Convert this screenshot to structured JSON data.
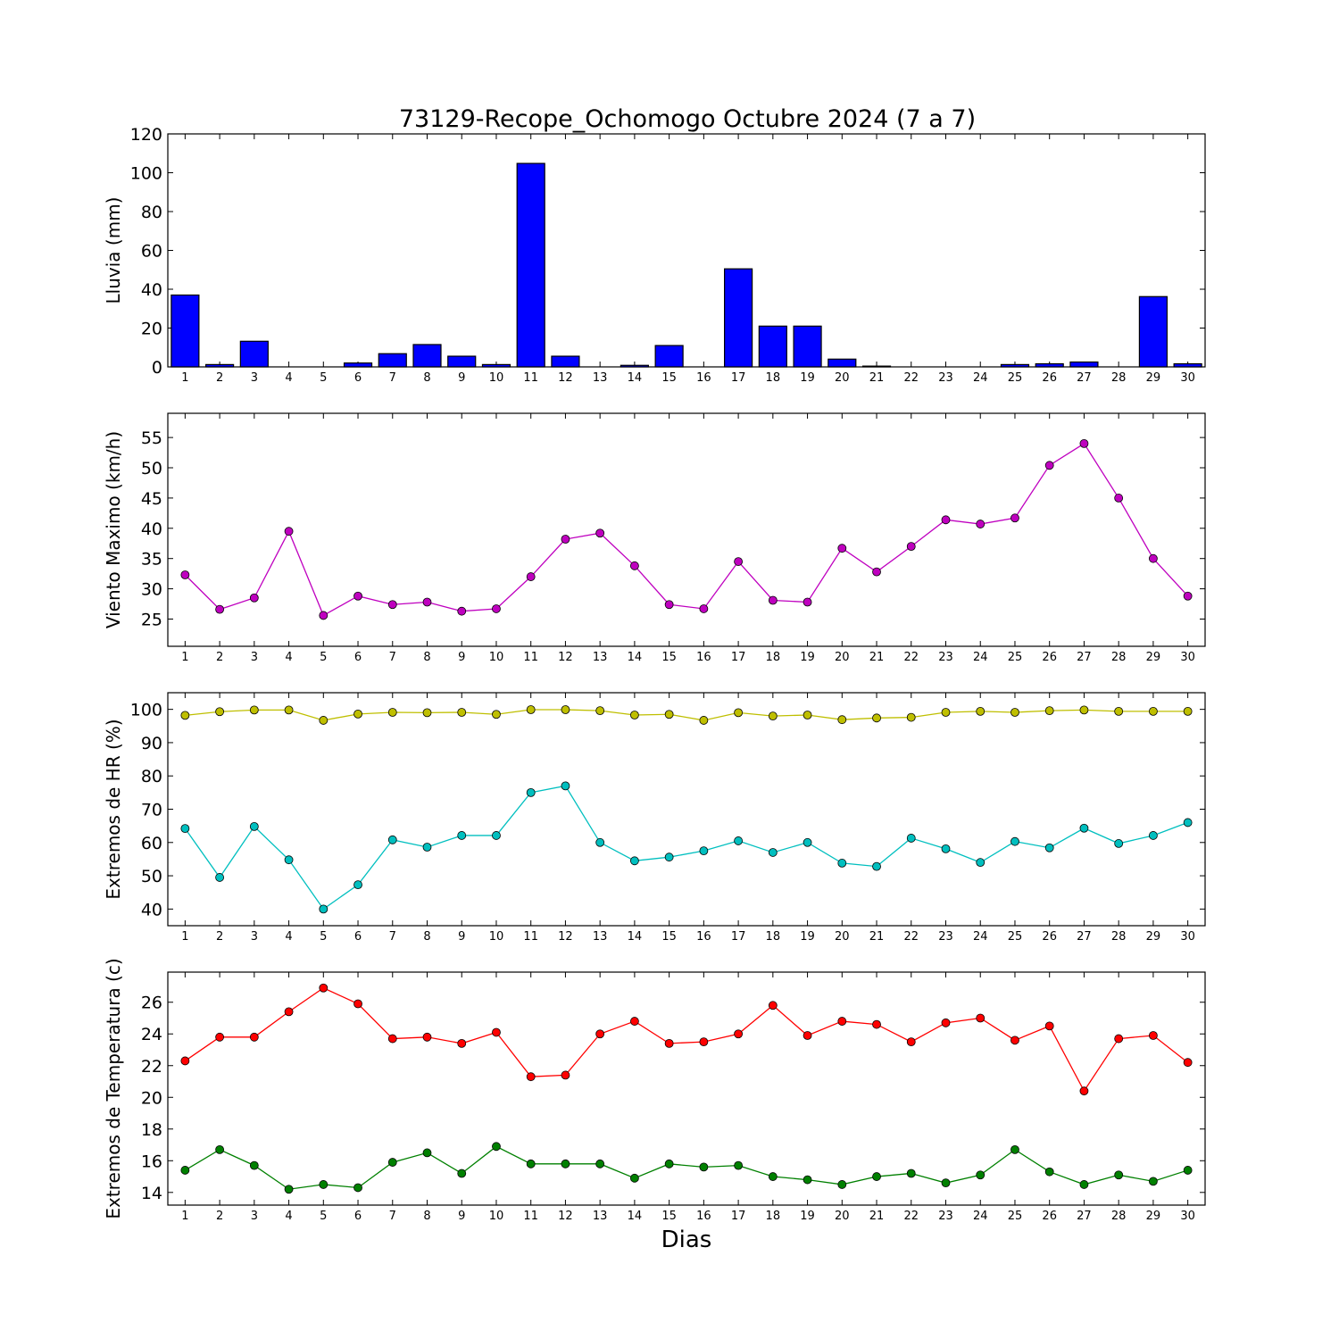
{
  "chart_data": {
    "title": "73129-Recope_Ochomogo Octubre 2024  (7 a 7)",
    "xlabel": "Dias",
    "days": [
      1,
      2,
      3,
      4,
      5,
      6,
      7,
      8,
      9,
      10,
      11,
      12,
      13,
      14,
      15,
      16,
      17,
      18,
      19,
      20,
      21,
      22,
      23,
      24,
      25,
      26,
      27,
      28,
      29,
      30
    ],
    "panels": [
      {
        "type": "bar",
        "ylabel": "Lluvia (mm)",
        "ylim": [
          0,
          120
        ],
        "yticks": [
          0,
          20,
          40,
          60,
          80,
          100,
          120
        ],
        "series": [
          {
            "color": "#0000ff",
            "values": [
              37,
              1.2,
              13.2,
              0,
              0,
              2,
              6.8,
              11.5,
              5.5,
              1.2,
              104.8,
              5.5,
              0,
              0.8,
              11,
              0,
              50.5,
              21,
              21,
              4,
              0.4,
              0,
              0,
              0,
              1.2,
              1.6,
              2.5,
              0,
              36.2,
              1.6
            ]
          }
        ]
      },
      {
        "type": "line",
        "ylabel": "Viento Maximo (km/h)",
        "ylim": [
          20.5,
          59
        ],
        "yticks": [
          25,
          30,
          35,
          40,
          45,
          50,
          55
        ],
        "series": [
          {
            "color": "#bf00bf",
            "values": [
              32.3,
              26.6,
              28.5,
              39.5,
              25.6,
              28.8,
              27.4,
              27.8,
              26.3,
              26.7,
              32,
              38.2,
              39.2,
              33.8,
              27.4,
              26.7,
              34.5,
              28.1,
              27.8,
              36.7,
              32.8,
              37,
              41.4,
              40.7,
              41.7,
              50.4,
              54,
              45,
              35,
              28.8
            ]
          }
        ]
      },
      {
        "type": "line",
        "ylabel": "Extremos de HR (%)",
        "ylim": [
          35,
          105
        ],
        "yticks": [
          40,
          50,
          60,
          70,
          80,
          90,
          100
        ],
        "series": [
          {
            "color": "#bfbf00",
            "values": [
              98.2,
              99.3,
              99.8,
              99.8,
              96.7,
              98.6,
              99.1,
              99,
              99.1,
              98.5,
              99.9,
              99.9,
              99.6,
              98.3,
              98.5,
              96.7,
              99,
              98,
              98.3,
              96.9,
              97.4,
              97.6,
              99.1,
              99.4,
              99.1,
              99.6,
              99.8,
              99.4,
              99.4,
              99.4
            ]
          },
          {
            "color": "#00bfbf",
            "values": [
              64.2,
              49.5,
              64.8,
              54.8,
              40,
              47.3,
              60.8,
              58.6,
              62.1,
              62.1,
              75,
              77,
              60,
              54.5,
              55.6,
              57.5,
              60.5,
              57,
              60,
              53.8,
              52.8,
              61.3,
              58.1,
              54,
              60.3,
              58.4,
              64.3,
              59.7,
              62.1,
              66
            ]
          }
        ]
      },
      {
        "type": "line",
        "ylabel": "Extremos de Temperatura (c)",
        "ylim": [
          13.2,
          27.9
        ],
        "yticks": [
          14,
          16,
          18,
          20,
          22,
          24,
          26
        ],
        "series": [
          {
            "color": "#ff0000",
            "values": [
              22.3,
              23.8,
              23.8,
              25.4,
              26.9,
              25.9,
              23.7,
              23.8,
              23.4,
              24.1,
              21.3,
              21.4,
              24,
              24.8,
              23.4,
              23.5,
              24,
              25.8,
              23.9,
              24.8,
              24.6,
              23.5,
              24.7,
              25,
              23.6,
              24.5,
              20.4,
              23.7,
              23.9,
              22.2
            ]
          },
          {
            "color": "#008000",
            "values": [
              15.4,
              16.7,
              15.7,
              14.2,
              14.5,
              14.3,
              15.9,
              16.5,
              15.2,
              16.9,
              15.8,
              15.8,
              15.8,
              14.9,
              15.8,
              15.6,
              15.7,
              15,
              14.8,
              14.5,
              15,
              15.2,
              14.6,
              15.1,
              16.7,
              15.3,
              14.5,
              15.1,
              14.7,
              15.4
            ]
          }
        ]
      }
    ]
  }
}
